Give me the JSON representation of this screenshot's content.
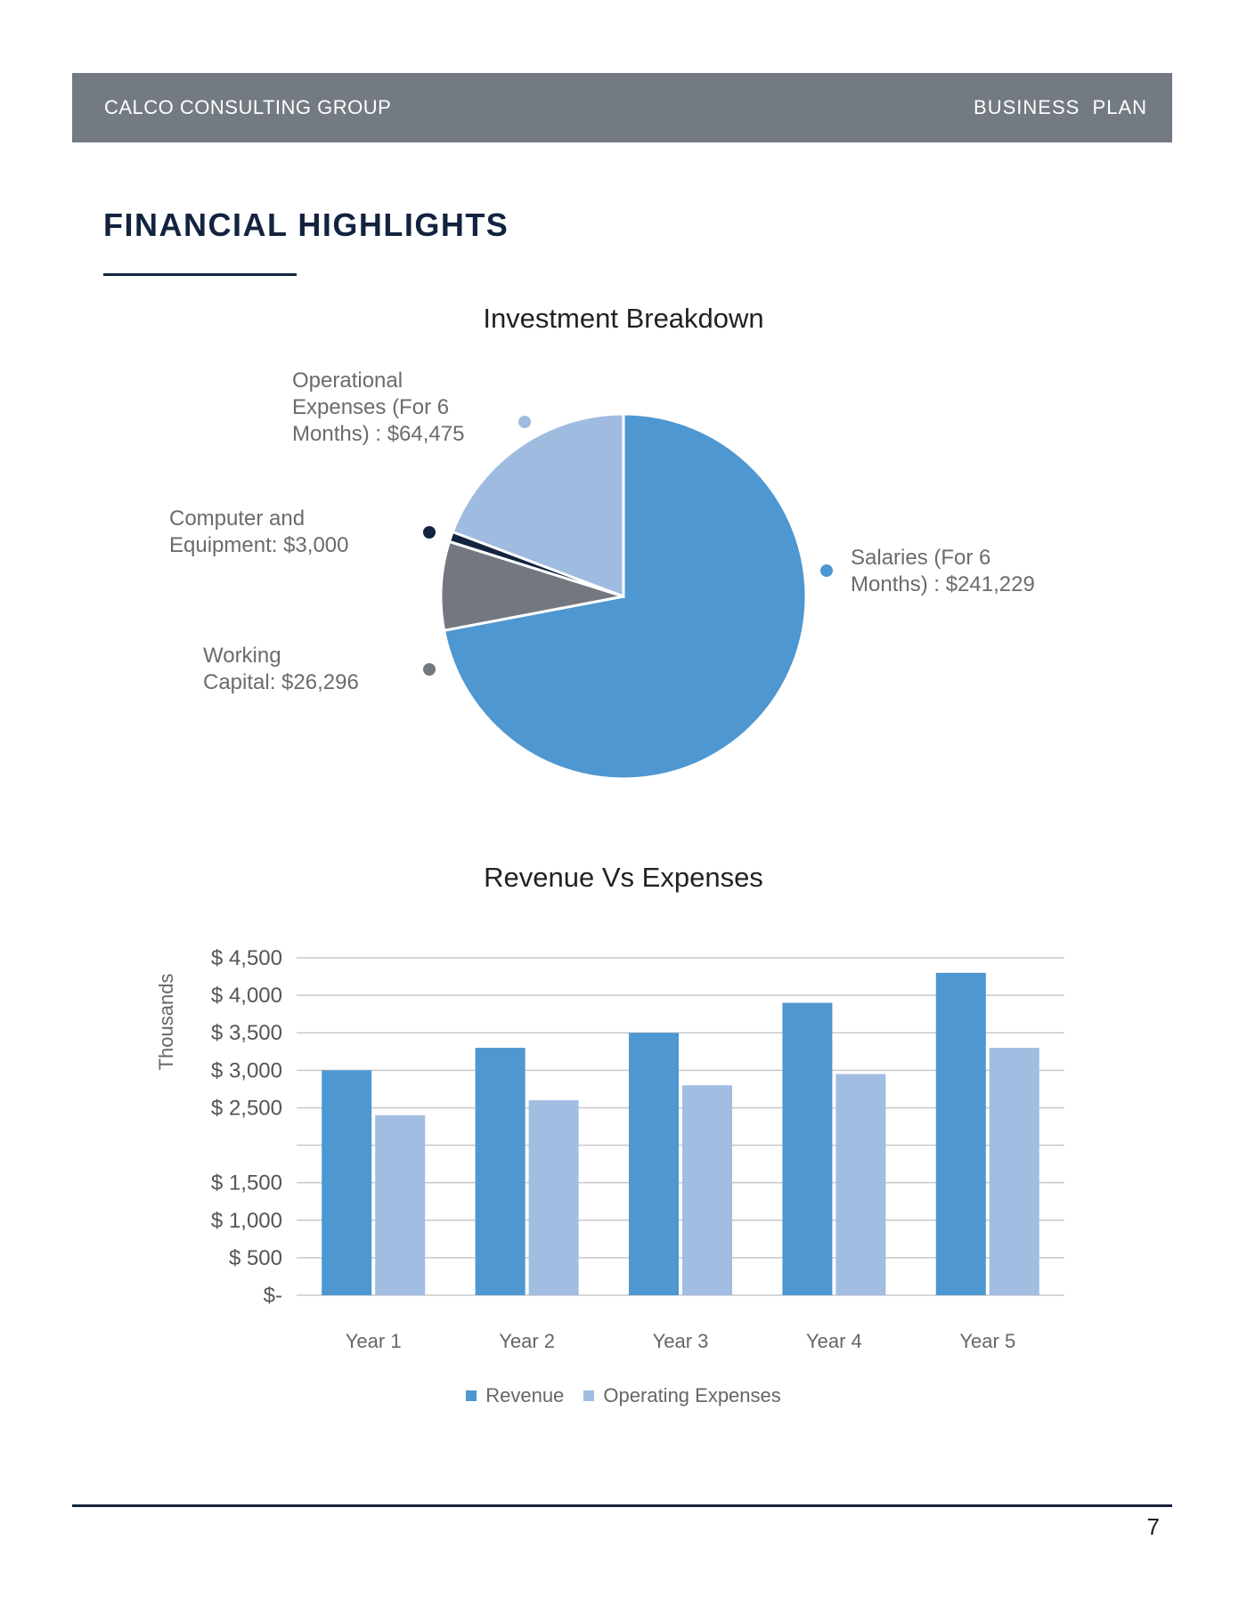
{
  "header": {
    "left": "CALCO CONSULTING GROUP",
    "right": "BUSINESS  PLAN"
  },
  "section_title": "FINANCIAL HIGHLIGHTS",
  "chart_data": [
    {
      "type": "pie",
      "title": "Investment Breakdown",
      "slices": [
        {
          "label": "Salaries (For  6\nMonths) : $241,229",
          "value": 241229,
          "color": "#4e97d1"
        },
        {
          "label": "Working\nCapital: $26,296",
          "value": 26296,
          "color": "#737880"
        },
        {
          "label": "Computer and\nEquipment: $3,000",
          "value": 3000,
          "color": "#132440"
        },
        {
          "label": "Operational\nExpenses (For 6\nMonths) : $64,475",
          "value": 64475,
          "color": "#9fbce0"
        }
      ]
    },
    {
      "type": "bar",
      "title": "Revenue Vs Expenses",
      "ylabel": "Thousands",
      "categories": [
        "Year 1",
        "Year 2",
        "Year 3",
        "Year 4",
        "Year 5"
      ],
      "series": [
        {
          "name": "Revenue",
          "color": "#4e97d1",
          "values": [
            3000,
            3300,
            3500,
            3900,
            4300
          ]
        },
        {
          "name": "Operating Expenses",
          "color": "#a1bde2",
          "values": [
            2400,
            2600,
            2800,
            2950,
            3300
          ]
        }
      ],
      "ylim": [
        0,
        4500
      ],
      "yticks": [
        {
          "value": 4500,
          "label": "$ 4,500"
        },
        {
          "value": 4000,
          "label": "$ 4,000"
        },
        {
          "value": 3500,
          "label": "$ 3,500"
        },
        {
          "value": 3000,
          "label": "$ 3,000"
        },
        {
          "value": 2500,
          "label": "$ 2,500"
        },
        {
          "value": 2000,
          "label": ""
        },
        {
          "value": 1500,
          "label": "$ 1,500"
        },
        {
          "value": 1000,
          "label": "$ 1,000"
        },
        {
          "value": 500,
          "label": "$ 500"
        },
        {
          "value": 0,
          "label": "$-"
        }
      ],
      "grid": true,
      "legend": "bottom"
    }
  ],
  "page_number": "7"
}
